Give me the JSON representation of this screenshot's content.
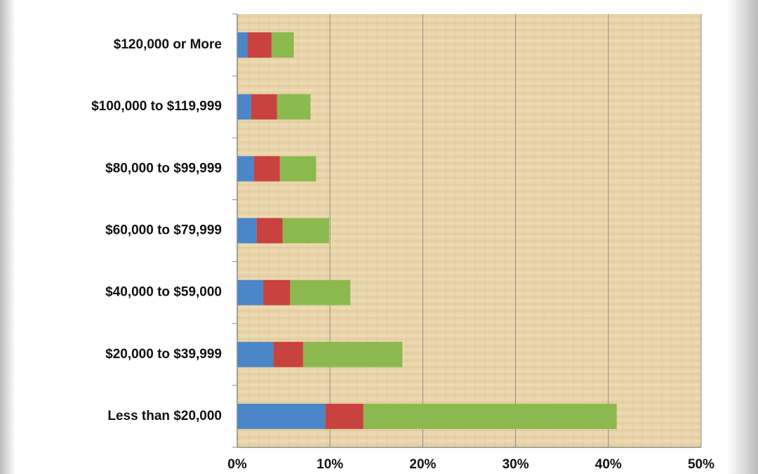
{
  "chart_data": {
    "type": "stacked-barh",
    "categories": [
      "$120,000 or More",
      "$100,000 to $119,999",
      "$80,000 to $99,999",
      "$60,000 to $79,999",
      "$40,000 to $59,000",
      "$20,000 to $39,999",
      "Less than $20,000"
    ],
    "series": [
      {
        "color": "#4a86c8",
        "values": [
          1.1,
          1.5,
          1.8,
          2.1,
          2.8,
          3.9,
          9.5
        ]
      },
      {
        "color": "#c8423f",
        "values": [
          2.6,
          2.8,
          2.8,
          2.8,
          2.9,
          3.2,
          4.1
        ]
      },
      {
        "color": "#8cb94f",
        "values": [
          2.4,
          3.6,
          3.9,
          5.0,
          6.5,
          10.7,
          27.3
        ]
      }
    ],
    "xlim": [
      0,
      50
    ],
    "xticks": [
      {
        "value": 0,
        "label": "0%"
      },
      {
        "value": 10,
        "label": "10%"
      },
      {
        "value": 20,
        "label": "20%"
      },
      {
        "value": 30,
        "label": "30%"
      },
      {
        "value": 40,
        "label": "40%"
      },
      {
        "value": 50,
        "label": "50%"
      }
    ],
    "grid": true
  }
}
